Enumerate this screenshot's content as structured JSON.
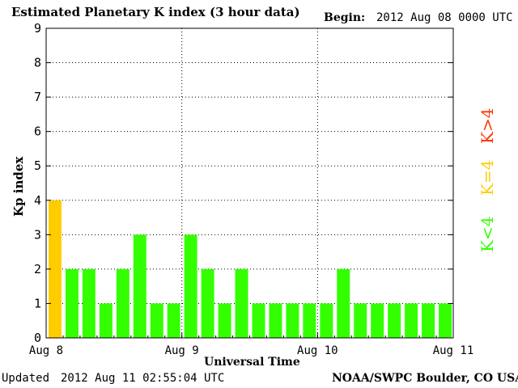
{
  "header": {
    "title": "Estimated Planetary K index (3 hour data)",
    "begin_label": "Begin:",
    "begin_value": "2012 Aug 08 0000 UTC"
  },
  "footer": {
    "updated_label": "Updated",
    "updated_value": "2012 Aug 11 02:55:04 UTC",
    "source": "NOAA/SWPC Boulder, CO USA"
  },
  "legend": {
    "low": {
      "text": "K<4",
      "color": "#33ff00"
    },
    "mid": {
      "text": "K=4",
      "color": "#ffcc00"
    },
    "high": {
      "text": "K>4",
      "color": "#ff3300"
    }
  },
  "colors": {
    "low": "#33ff00",
    "mid": "#ffcc00",
    "high": "#ff3300"
  },
  "chart_data": {
    "type": "bar",
    "title": "Estimated Planetary K index (3 hour data)",
    "xlabel": "Universal Time",
    "ylabel": "Kp index",
    "ylim": [
      0,
      9
    ],
    "yticks": [
      "0",
      "1",
      "2",
      "3",
      "4",
      "5",
      "6",
      "7",
      "8",
      "9"
    ],
    "xticks": [
      "Aug 8",
      "Aug 9",
      "Aug 10",
      "Aug 11"
    ],
    "grid": true,
    "categories": [
      "Aug 8 00",
      "Aug 8 03",
      "Aug 8 06",
      "Aug 8 09",
      "Aug 8 12",
      "Aug 8 15",
      "Aug 8 18",
      "Aug 8 21",
      "Aug 9 00",
      "Aug 9 03",
      "Aug 9 06",
      "Aug 9 09",
      "Aug 9 12",
      "Aug 9 15",
      "Aug 9 18",
      "Aug 9 21",
      "Aug 10 00",
      "Aug 10 03",
      "Aug 10 06",
      "Aug 10 09",
      "Aug 10 12",
      "Aug 10 15",
      "Aug 10 18",
      "Aug 10 21"
    ],
    "values": [
      4,
      2,
      2,
      1,
      2,
      3,
      1,
      1,
      3,
      2,
      1,
      2,
      1,
      1,
      1,
      1,
      1,
      2,
      1,
      1,
      1,
      1,
      1,
      1
    ]
  }
}
